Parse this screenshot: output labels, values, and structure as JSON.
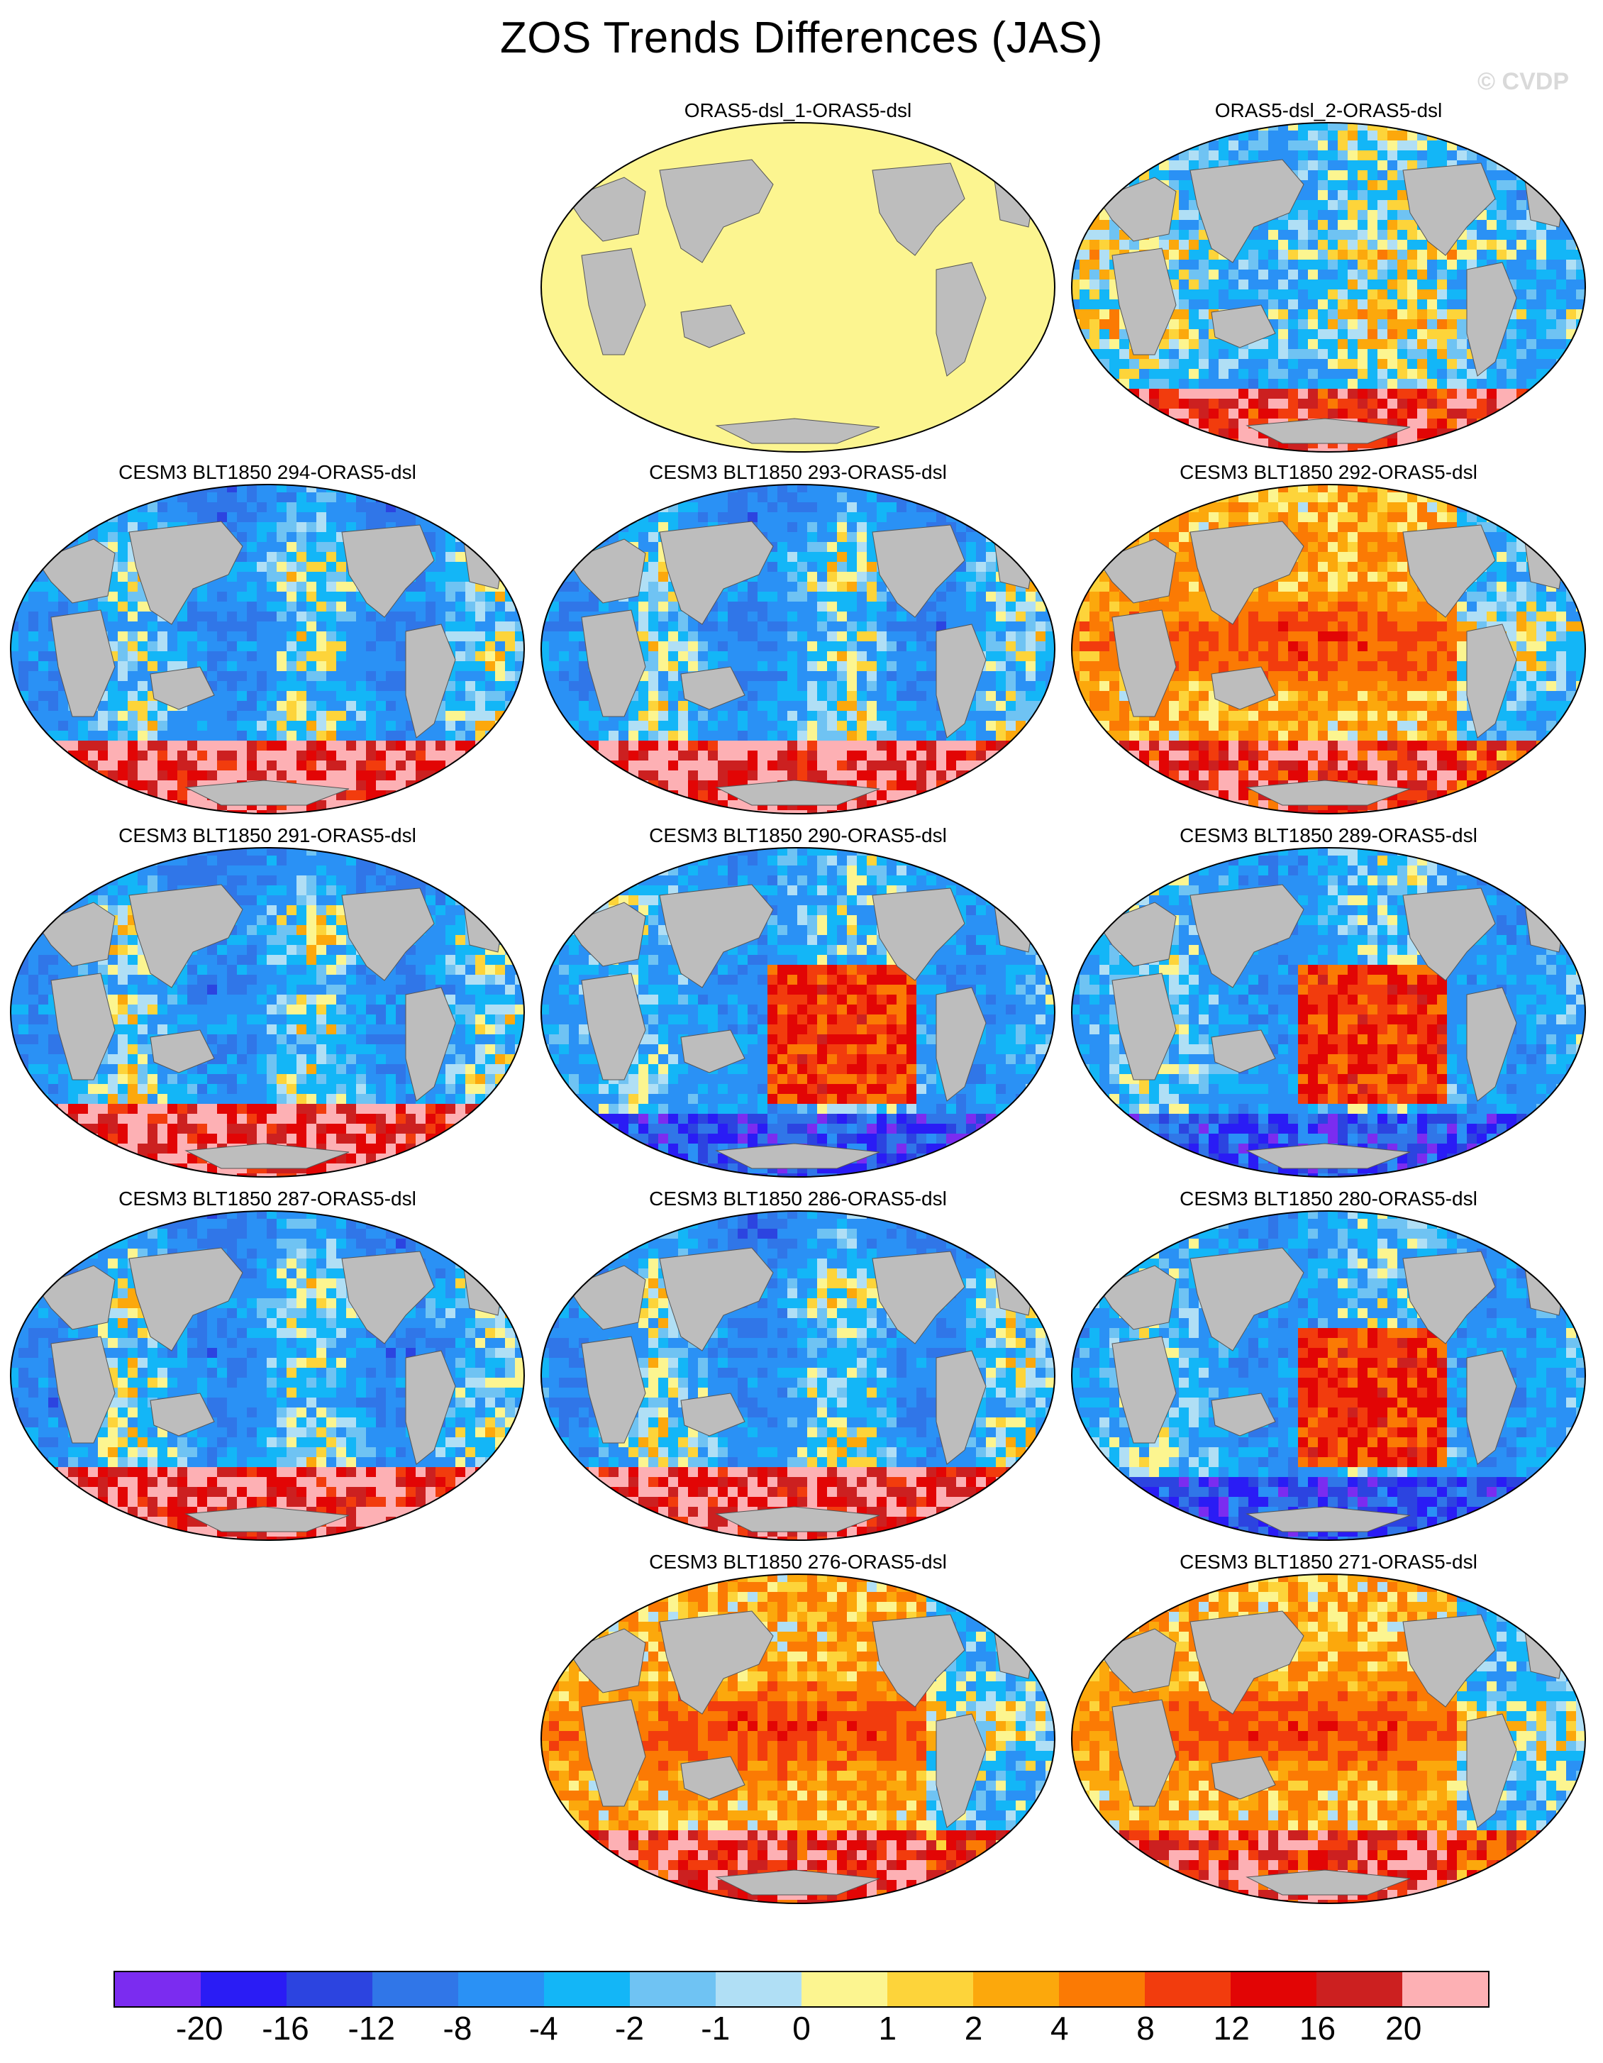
{
  "title": "ZOS Trends Differences (JAS)",
  "watermark": "© CVDP",
  "panels": [
    {
      "title": "ORAS5-dsl_1-ORAS5-dsl",
      "pattern": "zero"
    },
    {
      "title": "ORAS5-dsl_2-ORAS5-dsl",
      "pattern": "mixed"
    },
    {
      "title": "CESM3 BLT1850 294-ORAS5-dsl",
      "pattern": "cool"
    },
    {
      "title": "CESM3 BLT1850 293-ORAS5-dsl",
      "pattern": "cool"
    },
    {
      "title": "CESM3 BLT1850 292-ORAS5-dsl",
      "pattern": "warm"
    },
    {
      "title": "CESM3 BLT1850 291-ORAS5-dsl",
      "pattern": "cool"
    },
    {
      "title": "CESM3 BLT1850 290-ORAS5-dsl",
      "pattern": "eastwarm"
    },
    {
      "title": "CESM3 BLT1850 289-ORAS5-dsl",
      "pattern": "eastwarm"
    },
    {
      "title": "CESM3 BLT1850 287-ORAS5-dsl",
      "pattern": "cool"
    },
    {
      "title": "CESM3 BLT1850 286-ORAS5-dsl",
      "pattern": "cool"
    },
    {
      "title": "CESM3 BLT1850 280-ORAS5-dsl",
      "pattern": "eastwarm"
    },
    {
      "title": "CESM3 BLT1850 276-ORAS5-dsl",
      "pattern": "warm"
    },
    {
      "title": "CESM3 BLT1850 271-ORAS5-dsl",
      "pattern": "warm"
    }
  ],
  "colorbar": {
    "colors": [
      "#7b2cf0",
      "#2a1cf5",
      "#2c44e0",
      "#3076e8",
      "#2a91f5",
      "#13b6f7",
      "#6fc3f3",
      "#b0dff5",
      "#fcf590",
      "#fdd43a",
      "#fca80c",
      "#fb7a04",
      "#f23c0d",
      "#e20505",
      "#cc2020",
      "#fdb0b4"
    ],
    "labels": [
      "-20",
      "-16",
      "-12",
      "-8",
      "-4",
      "-2",
      "-1",
      "0",
      "1",
      "2",
      "4",
      "8",
      "12",
      "16",
      "20"
    ]
  },
  "colors": {
    "land": "#bdbdbd",
    "background": "#ffffff"
  }
}
